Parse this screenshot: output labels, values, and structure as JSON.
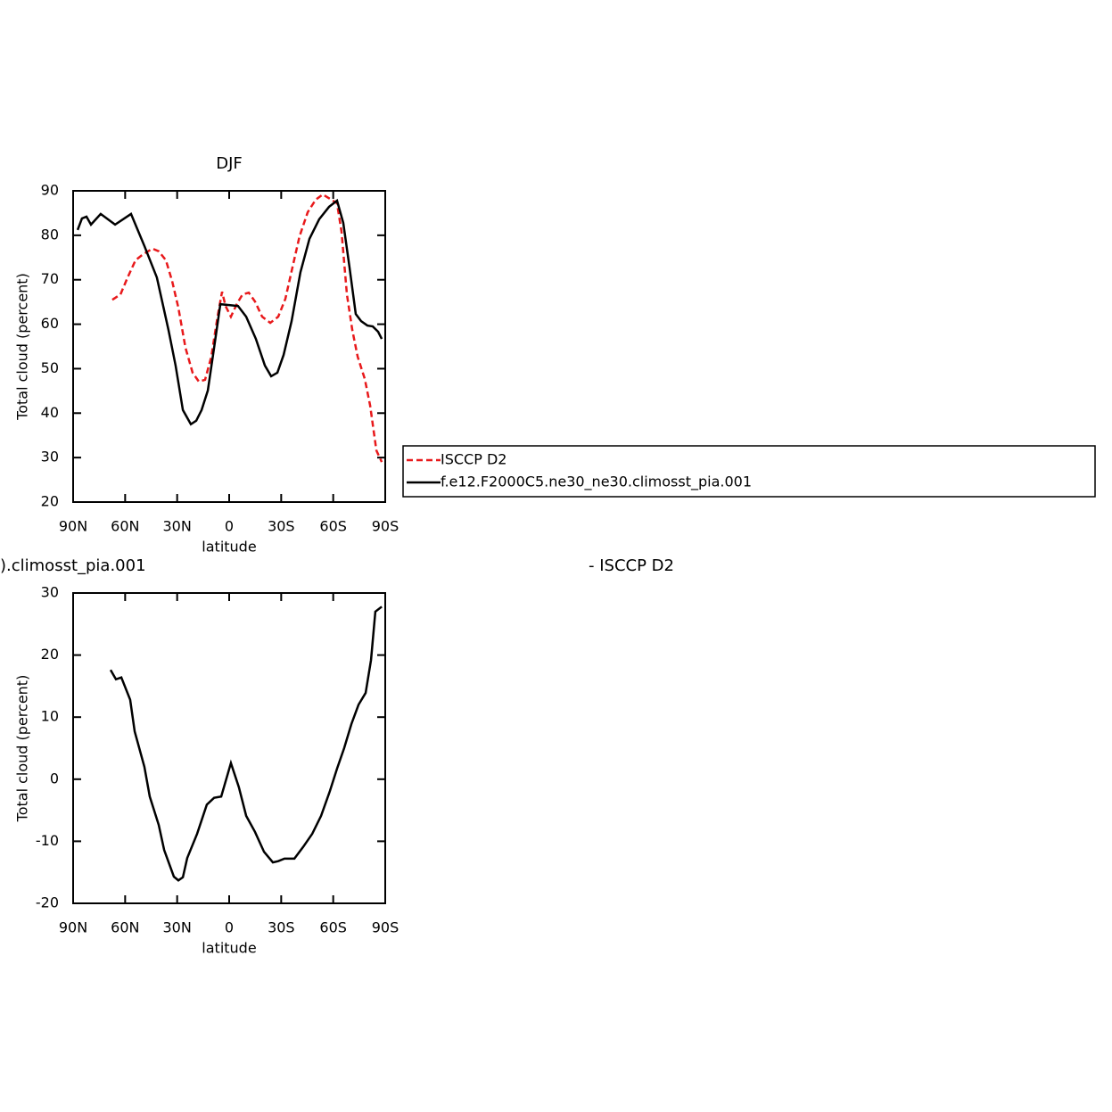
{
  "chart_data": [
    {
      "type": "line",
      "title": "DJF",
      "xlabel": "latitude",
      "ylabel": "Total cloud (percent)",
      "xlim": [
        90,
        -90
      ],
      "xticks": [
        {
          "value": 90,
          "label": "90N"
        },
        {
          "value": 60,
          "label": "60N"
        },
        {
          "value": 30,
          "label": "30N"
        },
        0,
        {
          "value": -30,
          "label": "30S"
        },
        {
          "value": -60,
          "label": "60S"
        },
        {
          "value": -90,
          "label": "90S"
        }
      ],
      "ylim": [
        20,
        90
      ],
      "yticks": [
        20,
        30,
        40,
        50,
        60,
        70,
        80,
        90
      ],
      "legend": "right",
      "series": [
        {
          "name": "ISCCP D2",
          "color": "#e8191b",
          "dashed": true,
          "x": [
            67.4,
            62.7,
            58.6,
            54.0,
            49.4,
            44.2,
            40.6,
            36.5,
            32.9,
            29.3,
            25.2,
            21.1,
            17.5,
            13.9,
            10.3,
            6.7,
            4.1,
            2.1,
            -1.0,
            -4.6,
            -7.7,
            -11.3,
            -14.9,
            -19.0,
            -23.7,
            -28.3,
            -32.4,
            -36.5,
            -40.6,
            -45.3,
            -49.9,
            -54.0,
            -58.1,
            -62.2,
            -64.8,
            -67.9,
            -71.0,
            -74.1,
            -78.2,
            -81.3,
            -84.9,
            -88.0
          ],
          "values": [
            65.5,
            66.7,
            70.5,
            74.4,
            75.8,
            77.0,
            76.4,
            74.4,
            69.7,
            63.7,
            54.7,
            49.1,
            47.1,
            47.5,
            52.7,
            61.7,
            67.3,
            64.1,
            61.7,
            64.7,
            66.7,
            67.1,
            65.1,
            61.7,
            60.3,
            61.7,
            65.7,
            72.8,
            79.8,
            85.2,
            88.0,
            89.2,
            88.2,
            87.2,
            80.8,
            66.7,
            58.7,
            52.7,
            47.7,
            41.7,
            31.6,
            29.0
          ]
        },
        {
          "name": "f.e12.F2000C5.ne30_ne30.climosst_pia.001",
          "color": "#000000",
          "dashed": false,
          "x": [
            87.4,
            84.9,
            82.3,
            79.7,
            74.1,
            65.8,
            56.6,
            48.9,
            41.7,
            35.0,
            30.9,
            26.7,
            22.1,
            19.0,
            15.9,
            12.3,
            8.7,
            5.1,
            0,
            -5.1,
            -9.8,
            -15.4,
            -20.6,
            -24.2,
            -27.8,
            -31.4,
            -36.0,
            -41.1,
            -46.3,
            -51.9,
            -57.6,
            -62.2,
            -65.8,
            -69.4,
            -73.0,
            -76.1,
            -79.7,
            -82.8,
            -85.9,
            -88.0
          ],
          "values": [
            81.2,
            83.8,
            84.2,
            82.4,
            84.8,
            82.4,
            84.8,
            77.6,
            70.5,
            58.7,
            50.7,
            40.7,
            37.5,
            38.3,
            40.7,
            45.1,
            54.7,
            64.5,
            64.3,
            64.1,
            61.7,
            56.7,
            50.7,
            48.3,
            49.1,
            53.1,
            60.7,
            71.7,
            79.2,
            83.6,
            86.4,
            87.8,
            82.8,
            72.8,
            62.3,
            60.7,
            59.7,
            59.5,
            58.3,
            56.7
          ]
        }
      ]
    },
    {
      "type": "line",
      "title": ").climosst_pia.001",
      "subtitle": "- ISCCP D2",
      "xlabel": "latitude",
      "ylabel": "Total cloud (percent)",
      "xlim": [
        90,
        -90
      ],
      "xticks": [
        {
          "value": 90,
          "label": "90N"
        },
        {
          "value": 60,
          "label": "60N"
        },
        {
          "value": 30,
          "label": "30N"
        },
        0,
        {
          "value": -30,
          "label": "30S"
        },
        {
          "value": -60,
          "label": "60S"
        },
        {
          "value": -90,
          "label": "90S"
        }
      ],
      "ylim": [
        -20,
        30
      ],
      "yticks": [
        -20,
        -10,
        0,
        10,
        20,
        30
      ],
      "series": [
        {
          "color": "#000000",
          "dashed": false,
          "x": [
            68.4,
            65.3,
            62.2,
            57.1,
            54.5,
            48.9,
            45.8,
            40.6,
            37.5,
            31.9,
            29.3,
            26.7,
            24.2,
            18.5,
            12.9,
            8.7,
            4.6,
            -1.0,
            -5.6,
            -9.8,
            -14.9,
            -20.1,
            -25.2,
            -28.3,
            -31.9,
            -37.6,
            -42.7,
            -47.9,
            -53.0,
            -58.1,
            -62.2,
            -66.3,
            -70.5,
            -74.6,
            -78.7,
            -81.8,
            -84.3,
            -88.0
          ],
          "values": [
            17.6,
            16.1,
            16.4,
            12.8,
            7.7,
            2.0,
            -2.8,
            -7.4,
            -11.4,
            -15.7,
            -16.3,
            -15.8,
            -12.7,
            -8.8,
            -4.1,
            -3.0,
            -2.8,
            2.6,
            -1.3,
            -5.9,
            -8.5,
            -11.7,
            -13.4,
            -13.2,
            -12.8,
            -12.8,
            -10.9,
            -8.8,
            -5.9,
            -1.9,
            1.7,
            5.0,
            8.9,
            12.0,
            13.9,
            19.2,
            27.0,
            27.8
          ]
        }
      ]
    }
  ]
}
